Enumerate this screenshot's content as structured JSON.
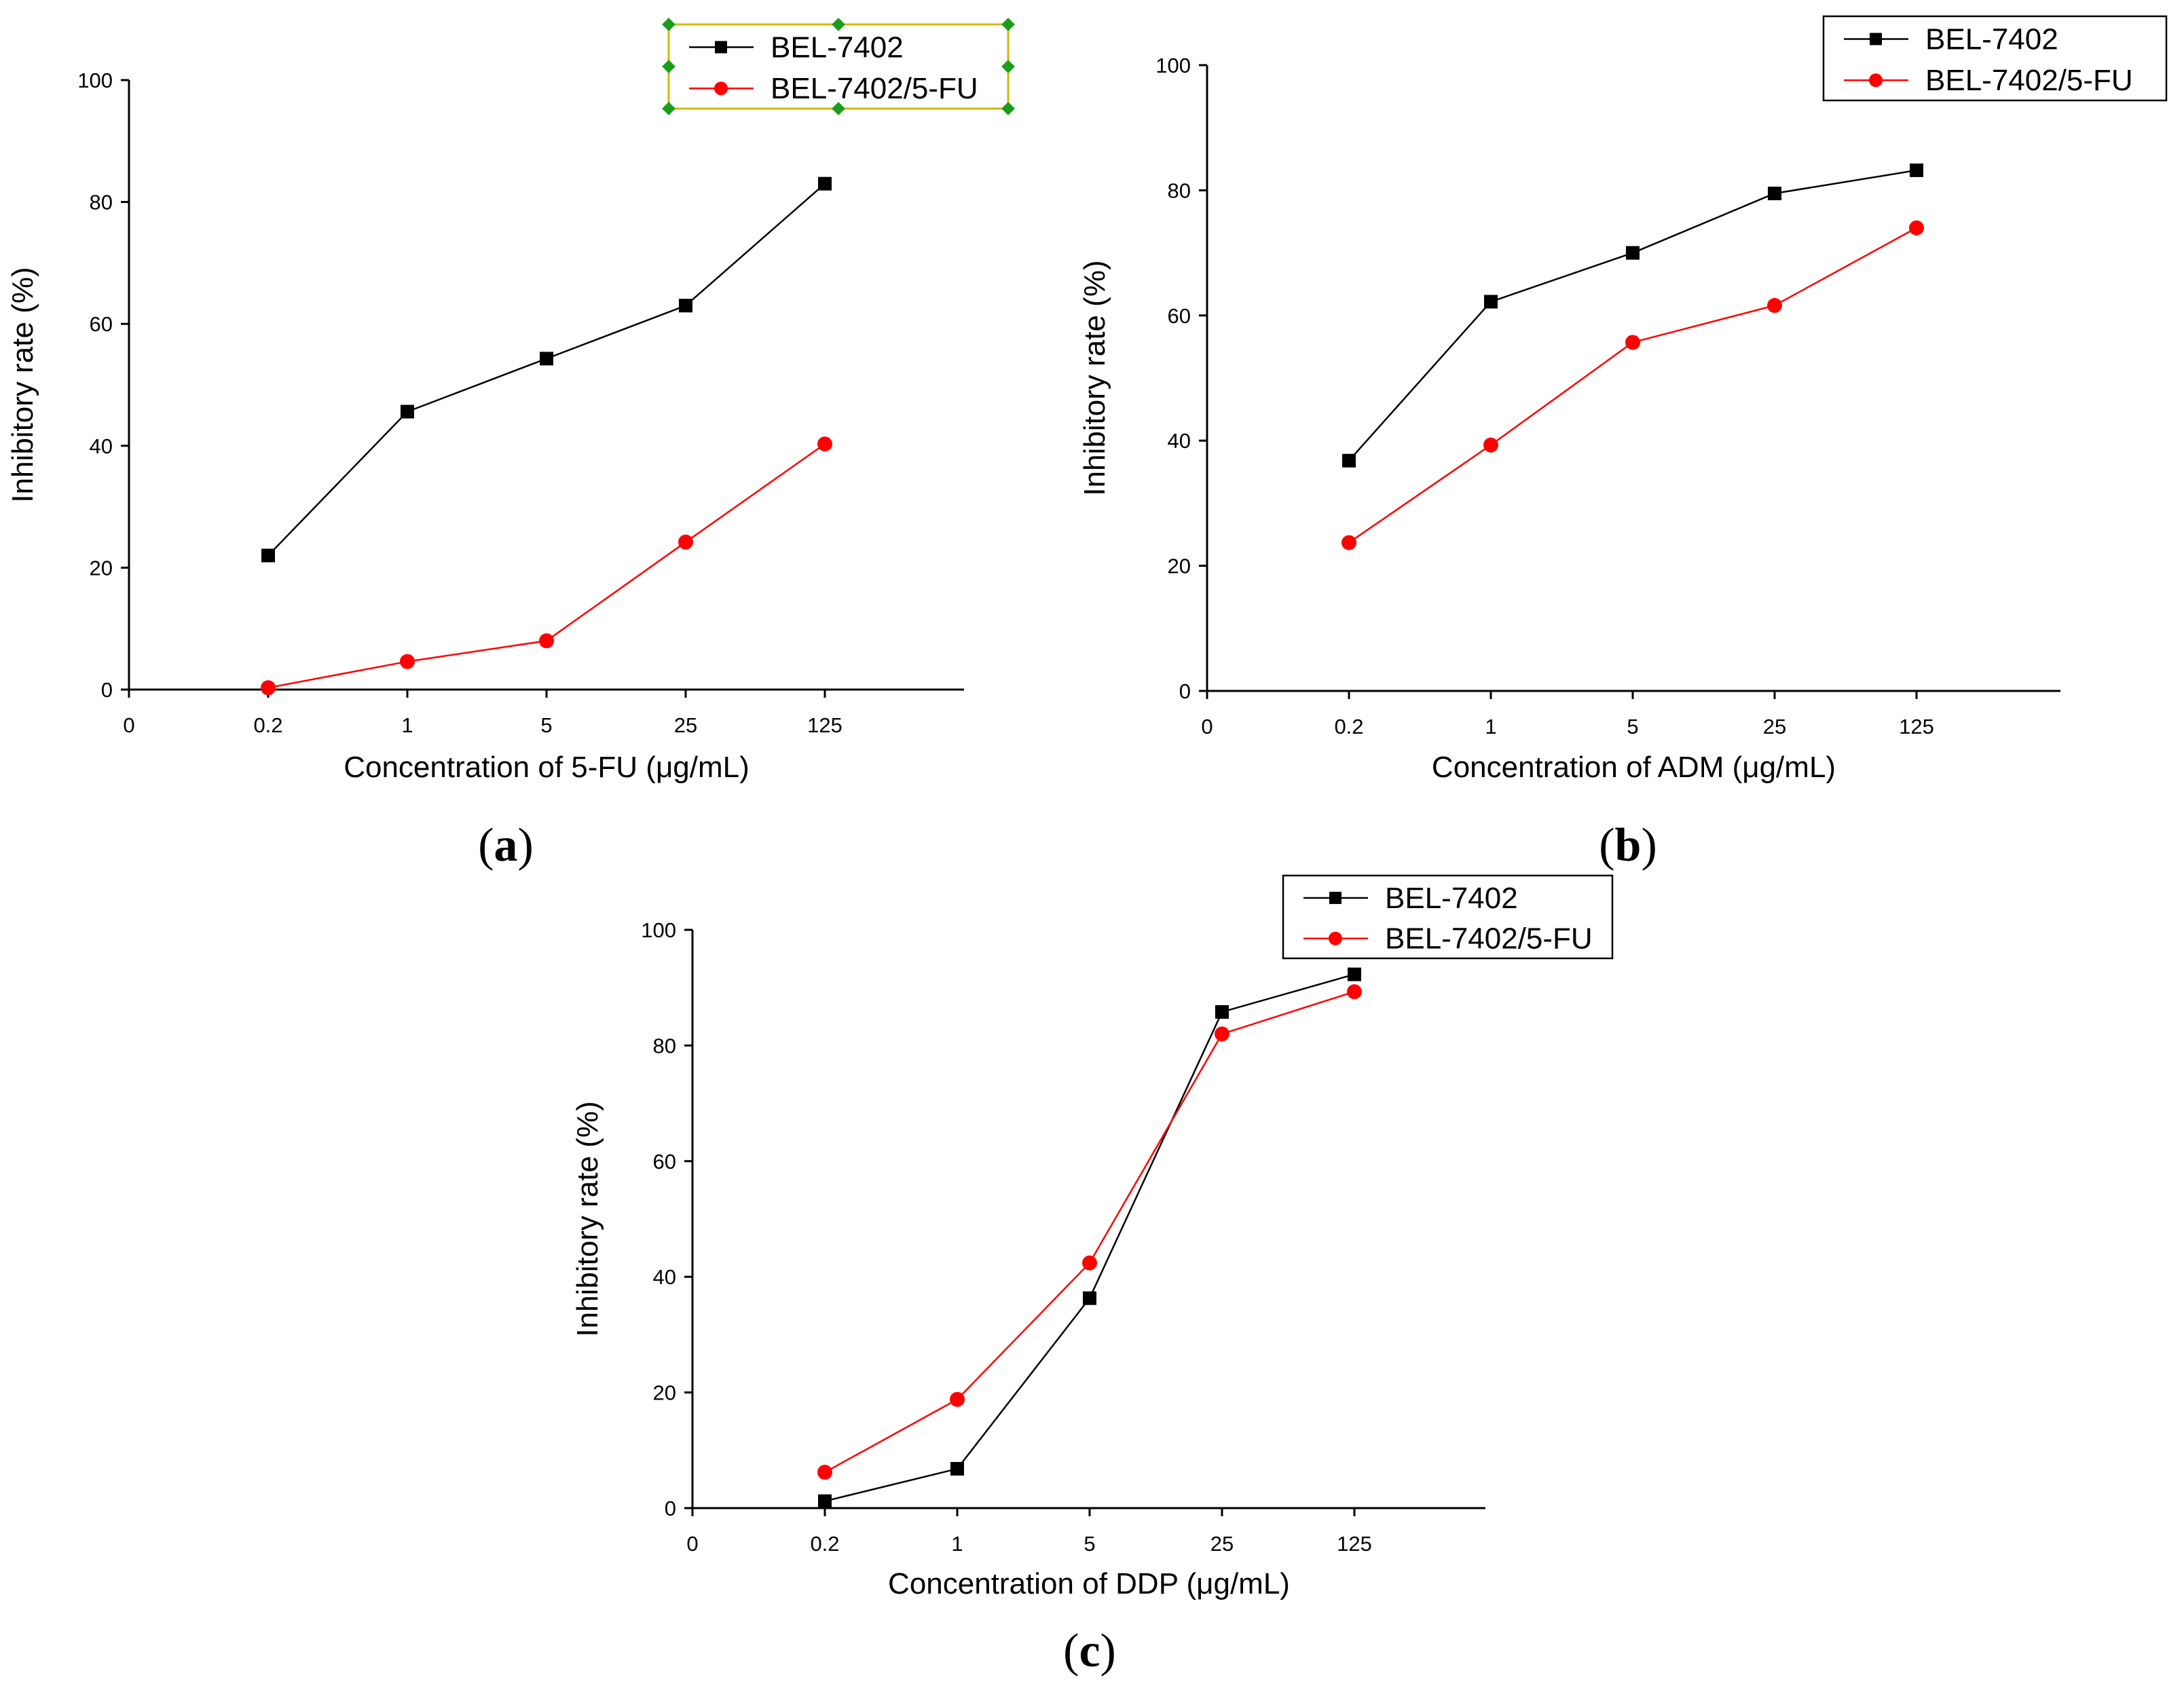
{
  "figure": {
    "legend_series": [
      "BEL-7402",
      "BEL-7402/5-FU"
    ],
    "colors": {
      "series1": "#000000",
      "series2": "#ff0000",
      "frame": "#000000",
      "selection": "#d4b800",
      "handle": "#1a9e1a"
    }
  },
  "chart_data": [
    {
      "type": "line",
      "panel_label": "a",
      "xlabel": "Concentration of 5-FU (μg/mL)",
      "ylabel": "Inhibitory rate (%)",
      "categories": [
        "0",
        "0.2",
        "1",
        "5",
        "25",
        "125"
      ],
      "ylim": [
        0,
        100
      ],
      "yticks": [
        "0",
        "20",
        "40",
        "60",
        "80",
        "100"
      ],
      "legend_position": "top",
      "series": [
        {
          "name": "BEL-7402",
          "marker": "square",
          "x": [
            "0.2",
            "1",
            "5",
            "25",
            "125"
          ],
          "values": [
            22,
            45.6,
            54.3,
            63,
            83
          ]
        },
        {
          "name": "BEL-7402/5-FU",
          "marker": "circle",
          "x": [
            "0.2",
            "1",
            "5",
            "25",
            "125"
          ],
          "values": [
            0.3,
            4.6,
            8,
            24.2,
            40.3
          ]
        }
      ]
    },
    {
      "type": "line",
      "panel_label": "b",
      "xlabel": "Concentration of  ADM (μg/mL)",
      "ylabel": "Inhibitory rate (%)",
      "categories": [
        "0",
        "0.2",
        "1",
        "5",
        "25",
        "125"
      ],
      "ylim": [
        0,
        100
      ],
      "yticks": [
        "0",
        "20",
        "40",
        "60",
        "80",
        "100"
      ],
      "legend_position": "top-right",
      "series": [
        {
          "name": "BEL-7402",
          "marker": "square",
          "x": [
            "0.2",
            "1",
            "5",
            "25",
            "125"
          ],
          "values": [
            36.8,
            62.2,
            70,
            79.5,
            83.2
          ]
        },
        {
          "name": "BEL-7402/5-FU",
          "marker": "circle",
          "x": [
            "0.2",
            "1",
            "5",
            "25",
            "125"
          ],
          "values": [
            23.7,
            39.3,
            55.7,
            61.6,
            74
          ]
        }
      ]
    },
    {
      "type": "line",
      "panel_label": "c",
      "xlabel": "Concentration of DDP (μg/mL)",
      "ylabel": "Inhibitory rate (%)",
      "categories": [
        "0",
        "0.2",
        "1",
        "5",
        "25",
        "125"
      ],
      "ylim": [
        0,
        100
      ],
      "yticks": [
        "0",
        "20",
        "40",
        "60",
        "80",
        "100"
      ],
      "legend_position": "top-right",
      "series": [
        {
          "name": "BEL-7402",
          "marker": "square",
          "x": [
            "0.2",
            "1",
            "5",
            "25",
            "125"
          ],
          "values": [
            1.2,
            6.8,
            36.3,
            85.8,
            92.3
          ]
        },
        {
          "name": "BEL-7402/5-FU",
          "marker": "circle",
          "x": [
            "0.2",
            "1",
            "5",
            "25",
            "125"
          ],
          "values": [
            6.2,
            18.8,
            42.4,
            82,
            89.3
          ]
        }
      ]
    }
  ]
}
